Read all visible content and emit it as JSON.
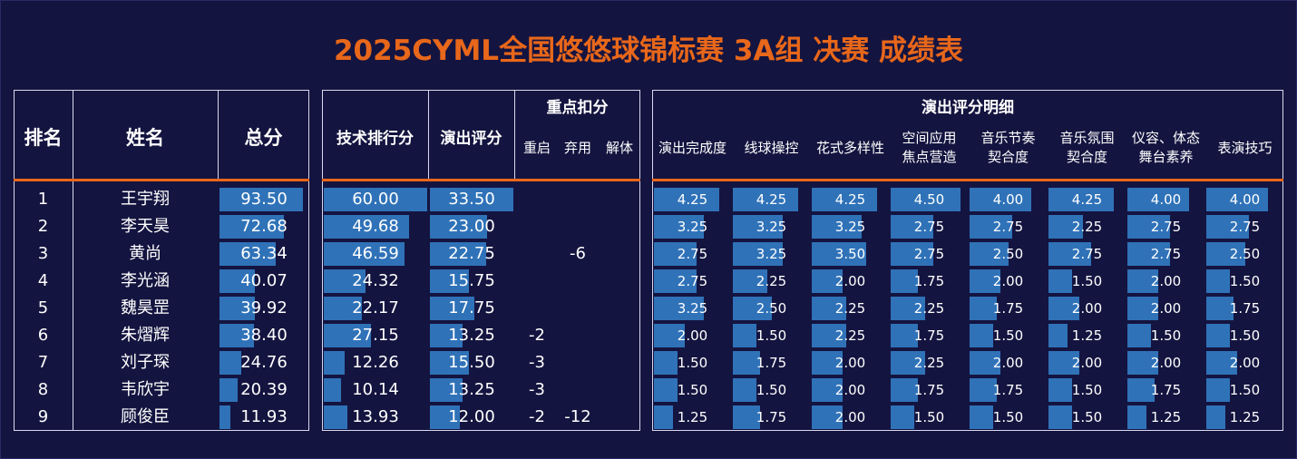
{
  "title": "2025CYML全国悠悠球锦标赛 3A组 决赛 成绩表",
  "colors": {
    "background": "#141440",
    "title": "#e8671a",
    "bar": "#2f72b8",
    "divider": "#e8671a",
    "border": "#d8d8ee"
  },
  "headers": {
    "rank": "排名",
    "name": "姓名",
    "total": "总分",
    "tech": "技术排行分",
    "perf": "演出评分",
    "deduction_group": "重点扣分",
    "restart": "重启",
    "abandon": "弃用",
    "disassemble": "解体",
    "detail_group": "演出评分明细",
    "details": [
      [
        "演出完成度"
      ],
      [
        "线球操控"
      ],
      [
        "花式多样性"
      ],
      [
        "空间应用",
        "焦点营造"
      ],
      [
        "音乐节奏",
        "契合度"
      ],
      [
        "音乐氛围",
        "契合度"
      ],
      [
        "仪容、体态",
        "舞台素养"
      ],
      [
        "表演技巧"
      ]
    ]
  },
  "max": {
    "total": 100,
    "tech": 60,
    "perf": 33.5,
    "detail": 5
  },
  "shared_disassemble": "-6",
  "rows": [
    {
      "rank": "1",
      "name": "王宇翔",
      "total": "93.50",
      "tech": "60.00",
      "perf": "33.50",
      "restart": "",
      "abandon": "",
      "details": [
        "4.25",
        "4.25",
        "4.25",
        "4.50",
        "4.00",
        "4.25",
        "4.00",
        "4.00"
      ]
    },
    {
      "rank": "2",
      "name": "李天昊",
      "total": "72.68",
      "tech": "49.68",
      "perf": "23.00",
      "restart": "",
      "abandon": "",
      "details": [
        "3.25",
        "3.25",
        "3.25",
        "2.75",
        "2.75",
        "2.25",
        "2.75",
        "2.75"
      ]
    },
    {
      "rank": "3",
      "name": "黄尚",
      "total": "63.34",
      "tech": "46.59",
      "perf": "22.75",
      "restart": "",
      "abandon": "",
      "details": [
        "2.75",
        "3.25",
        "3.50",
        "2.75",
        "2.50",
        "2.75",
        "2.75",
        "2.50"
      ]
    },
    {
      "rank": "4",
      "name": "李光涵",
      "total": "40.07",
      "tech": "24.32",
      "perf": "15.75",
      "restart": "",
      "abandon": "",
      "details": [
        "2.75",
        "2.25",
        "2.00",
        "1.75",
        "2.00",
        "1.50",
        "2.00",
        "1.50"
      ]
    },
    {
      "rank": "5",
      "name": "魏昊罡",
      "total": "39.92",
      "tech": "22.17",
      "perf": "17.75",
      "restart": "",
      "abandon": "",
      "details": [
        "3.25",
        "2.50",
        "2.25",
        "2.25",
        "1.75",
        "2.00",
        "2.00",
        "1.75"
      ]
    },
    {
      "rank": "6",
      "name": "朱熠辉",
      "total": "38.40",
      "tech": "27.15",
      "perf": "13.25",
      "restart": "-2",
      "abandon": "",
      "details": [
        "2.00",
        "1.50",
        "2.25",
        "1.75",
        "1.50",
        "1.25",
        "1.50",
        "1.50"
      ]
    },
    {
      "rank": "7",
      "name": "刘子琛",
      "total": "24.76",
      "tech": "12.26",
      "perf": "15.50",
      "restart": "-3",
      "abandon": "",
      "details": [
        "1.50",
        "1.75",
        "2.00",
        "2.25",
        "2.00",
        "2.00",
        "2.00",
        "2.00"
      ]
    },
    {
      "rank": "8",
      "name": "韦欣宇",
      "total": "20.39",
      "tech": "10.14",
      "perf": "13.25",
      "restart": "-3",
      "abandon": "",
      "details": [
        "1.50",
        "1.50",
        "2.00",
        "1.75",
        "1.75",
        "1.50",
        "1.75",
        "1.50"
      ]
    },
    {
      "rank": "9",
      "name": "顾俊臣",
      "total": "11.93",
      "tech": "13.93",
      "perf": "12.00",
      "restart": "-2",
      "abandon": "-12",
      "details": [
        "1.25",
        "1.75",
        "2.00",
        "1.50",
        "1.50",
        "1.50",
        "1.25",
        "1.25"
      ]
    }
  ]
}
